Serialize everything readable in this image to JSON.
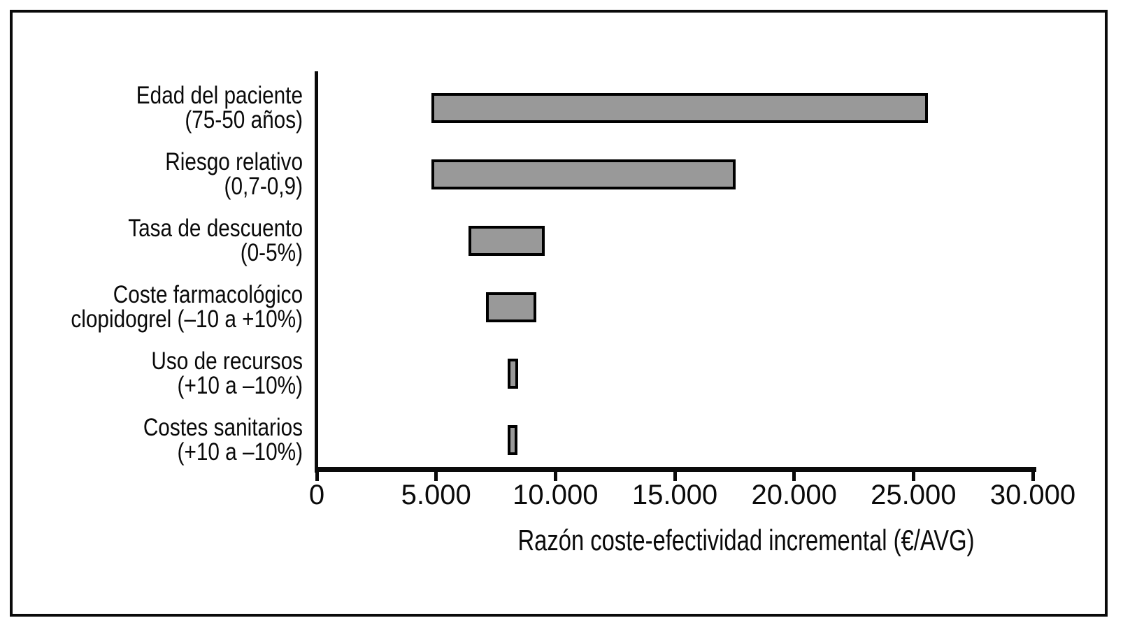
{
  "figure": {
    "background": "#ffffff",
    "frame_color": "#0a0a0a"
  },
  "chart_data": {
    "type": "bar",
    "subtype": "tornado",
    "orientation": "horizontal",
    "title": "",
    "xlabel": "Razón coste-efectividad incremental (€/AVG)",
    "ylabel": "",
    "xlim": [
      0,
      30000
    ],
    "grid": false,
    "legend": false,
    "bar_fill": "#999999",
    "bar_border": "#000000",
    "xticks": [
      {
        "value": 0,
        "label": "0"
      },
      {
        "value": 5000,
        "label": "5.000"
      },
      {
        "value": 10000,
        "label": "10.000"
      },
      {
        "value": 15000,
        "label": "15.000"
      },
      {
        "value": 20000,
        "label": "20.000"
      },
      {
        "value": 25000,
        "label": "25.000"
      },
      {
        "value": 30000,
        "label": "30.000"
      }
    ],
    "categories": [
      {
        "name": "edad-del-paciente",
        "label_lines": [
          "Edad del paciente",
          "(75-50 años)"
        ],
        "low": 4800,
        "high": 25600
      },
      {
        "name": "riesgo-relativo",
        "label_lines": [
          "Riesgo relativo",
          "(0,7-0,9)"
        ],
        "low": 4800,
        "high": 17550
      },
      {
        "name": "tasa-de-descuento",
        "label_lines": [
          "Tasa de descuento",
          "(0-5%)"
        ],
        "low": 6350,
        "high": 9550
      },
      {
        "name": "coste-farmacologico",
        "label_lines": [
          "Coste farmacológico",
          "clopidogrel (–10 a +10%)"
        ],
        "low": 7100,
        "high": 9200
      },
      {
        "name": "uso-de-recursos",
        "label_lines": [
          "Uso de recursos",
          "(+10 a –10%)"
        ],
        "low": 8000,
        "high": 8450
      },
      {
        "name": "costes-sanitarios",
        "label_lines": [
          "Costes sanitarios",
          "(+10 a –10%)"
        ],
        "low": 8000,
        "high": 8420
      }
    ]
  }
}
